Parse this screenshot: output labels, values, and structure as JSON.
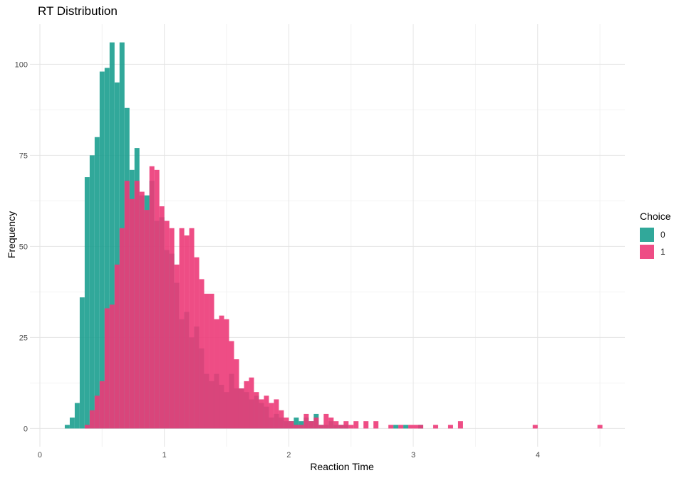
{
  "chart_data": {
    "type": "histogram",
    "title": "RT Distribution",
    "xlabel": "Reaction Time",
    "ylabel": "Frequency",
    "xlim": [
      -0.08,
      4.7
    ],
    "ylim": [
      -5,
      111
    ],
    "x_ticks": [
      0,
      1,
      2,
      3,
      4
    ],
    "y_ticks": [
      0,
      25,
      50,
      75,
      100
    ],
    "grid": true,
    "legend": {
      "title": "Choice",
      "position": "right"
    },
    "bin_width": 0.04,
    "series": [
      {
        "name": "0",
        "color": "#1b9e8f",
        "bins": [
          [
            0.22,
            1
          ],
          [
            0.26,
            3
          ],
          [
            0.3,
            7
          ],
          [
            0.34,
            36
          ],
          [
            0.38,
            69
          ],
          [
            0.42,
            75
          ],
          [
            0.46,
            80
          ],
          [
            0.5,
            98
          ],
          [
            0.54,
            99
          ],
          [
            0.58,
            106
          ],
          [
            0.62,
            95
          ],
          [
            0.66,
            106
          ],
          [
            0.7,
            88
          ],
          [
            0.74,
            71
          ],
          [
            0.78,
            77
          ],
          [
            0.82,
            64
          ],
          [
            0.86,
            64
          ],
          [
            0.9,
            68
          ],
          [
            0.94,
            57
          ],
          [
            0.98,
            58
          ],
          [
            1.02,
            49
          ],
          [
            1.06,
            48
          ],
          [
            1.1,
            40
          ],
          [
            1.14,
            30
          ],
          [
            1.18,
            32
          ],
          [
            1.22,
            25
          ],
          [
            1.26,
            28
          ],
          [
            1.3,
            22
          ],
          [
            1.34,
            15
          ],
          [
            1.38,
            13
          ],
          [
            1.42,
            15
          ],
          [
            1.46,
            12
          ],
          [
            1.5,
            10
          ],
          [
            1.54,
            15
          ],
          [
            1.58,
            11
          ],
          [
            1.62,
            11
          ],
          [
            1.66,
            10
          ],
          [
            1.7,
            8
          ],
          [
            1.74,
            9
          ],
          [
            1.78,
            7
          ],
          [
            1.82,
            6
          ],
          [
            1.86,
            3
          ],
          [
            1.9,
            4
          ],
          [
            1.94,
            3
          ],
          [
            1.98,
            2
          ],
          [
            2.02,
            2
          ],
          [
            2.06,
            3
          ],
          [
            2.1,
            2
          ],
          [
            2.14,
            3
          ],
          [
            2.18,
            2
          ],
          [
            2.22,
            4
          ],
          [
            2.26,
            1
          ],
          [
            2.3,
            1
          ],
          [
            2.34,
            2
          ],
          [
            2.38,
            1
          ],
          [
            2.42,
            1
          ],
          [
            2.46,
            1
          ],
          [
            2.86,
            1
          ],
          [
            2.94,
            1
          ],
          [
            3.06,
            1
          ]
        ]
      },
      {
        "name": "1",
        "color": "#ec3a78",
        "bins": [
          [
            0.38,
            1
          ],
          [
            0.42,
            5
          ],
          [
            0.46,
            9
          ],
          [
            0.5,
            13
          ],
          [
            0.54,
            33
          ],
          [
            0.58,
            34
          ],
          [
            0.62,
            45
          ],
          [
            0.66,
            55
          ],
          [
            0.7,
            68
          ],
          [
            0.74,
            63
          ],
          [
            0.78,
            68
          ],
          [
            0.82,
            65
          ],
          [
            0.86,
            60
          ],
          [
            0.9,
            72
          ],
          [
            0.94,
            71
          ],
          [
            0.98,
            61
          ],
          [
            1.02,
            57
          ],
          [
            1.06,
            55
          ],
          [
            1.1,
            45
          ],
          [
            1.14,
            55
          ],
          [
            1.18,
            53
          ],
          [
            1.22,
            55
          ],
          [
            1.26,
            47
          ],
          [
            1.3,
            41
          ],
          [
            1.34,
            37
          ],
          [
            1.38,
            37
          ],
          [
            1.42,
            30
          ],
          [
            1.46,
            31
          ],
          [
            1.5,
            30
          ],
          [
            1.54,
            24
          ],
          [
            1.58,
            19
          ],
          [
            1.62,
            11
          ],
          [
            1.66,
            13
          ],
          [
            1.7,
            14
          ],
          [
            1.74,
            10
          ],
          [
            1.78,
            8
          ],
          [
            1.82,
            9
          ],
          [
            1.86,
            7
          ],
          [
            1.9,
            8
          ],
          [
            1.94,
            5
          ],
          [
            1.98,
            3
          ],
          [
            2.02,
            2
          ],
          [
            2.06,
            1
          ],
          [
            2.1,
            1
          ],
          [
            2.14,
            4
          ],
          [
            2.18,
            2
          ],
          [
            2.22,
            3
          ],
          [
            2.26,
            1
          ],
          [
            2.3,
            4
          ],
          [
            2.34,
            3
          ],
          [
            2.38,
            2
          ],
          [
            2.42,
            1
          ],
          [
            2.46,
            2
          ],
          [
            2.5,
            1
          ],
          [
            2.54,
            2
          ],
          [
            2.62,
            2
          ],
          [
            2.7,
            2
          ],
          [
            2.82,
            1
          ],
          [
            2.9,
            1
          ],
          [
            2.98,
            1
          ],
          [
            3.02,
            1
          ],
          [
            3.06,
            1
          ],
          [
            3.18,
            1
          ],
          [
            3.3,
            1
          ],
          [
            3.38,
            2
          ],
          [
            3.98,
            1
          ],
          [
            4.5,
            1
          ]
        ]
      }
    ]
  }
}
